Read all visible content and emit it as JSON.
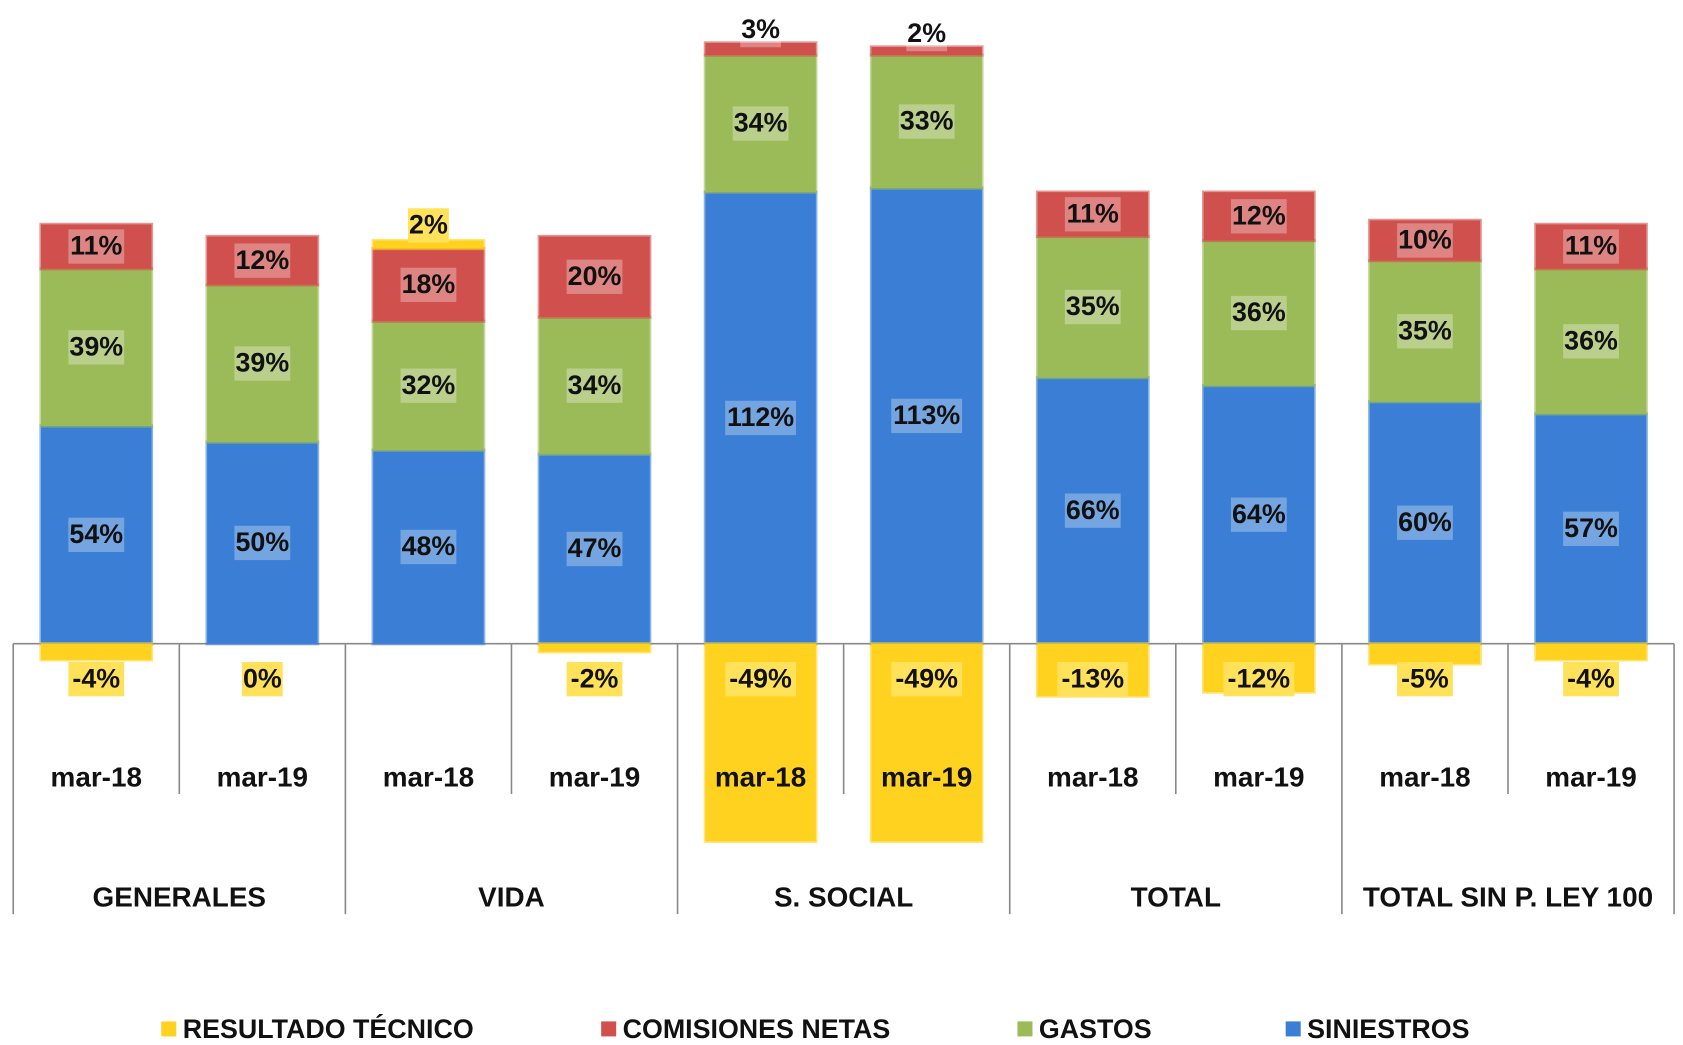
{
  "chart_data": {
    "type": "stacked_bar",
    "categories": [
      "mar-18",
      "mar-19",
      "mar-18",
      "mar-19",
      "mar-18",
      "mar-19",
      "mar-18",
      "mar-19",
      "mar-18",
      "mar-19"
    ],
    "groups": [
      "GENERALES",
      "VIDA",
      "S. SOCIAL",
      "TOTAL",
      "TOTAL SIN P. LEY 100"
    ],
    "series": [
      {
        "name": "RESULTADO TÉCNICO",
        "color": "#ffd21f",
        "values": [
          -4,
          0,
          2,
          -2,
          -49,
          -49,
          -13,
          -12,
          -5,
          -4
        ],
        "value_labels": [
          "-4%",
          "0%",
          "2%",
          "-2%",
          "-49%",
          "-49%",
          "-13%",
          "-12%",
          "-5%",
          "-4%"
        ]
      },
      {
        "name": "COMISIONES NETAS",
        "color": "#d0504d",
        "values": [
          11,
          12,
          18,
          20,
          3,
          2,
          11,
          12,
          10,
          11
        ],
        "value_labels": [
          "11%",
          "12%",
          "18%",
          "20%",
          "3%",
          "2%",
          "11%",
          "12%",
          "10%",
          "11%"
        ]
      },
      {
        "name": "GASTOS",
        "color": "#9bbb59",
        "values": [
          39,
          39,
          32,
          34,
          34,
          33,
          35,
          36,
          35,
          36
        ],
        "value_labels": [
          "39%",
          "39%",
          "32%",
          "34%",
          "34%",
          "33%",
          "35%",
          "36%",
          "35%",
          "36%"
        ]
      },
      {
        "name": "SINIESTROS",
        "color": "#3a7fd5",
        "values": [
          54,
          50,
          48,
          47,
          112,
          113,
          66,
          64,
          60,
          57
        ],
        "value_labels": [
          "54%",
          "50%",
          "48%",
          "47%",
          "112%",
          "113%",
          "66%",
          "64%",
          "60%",
          "57%"
        ]
      }
    ]
  }
}
